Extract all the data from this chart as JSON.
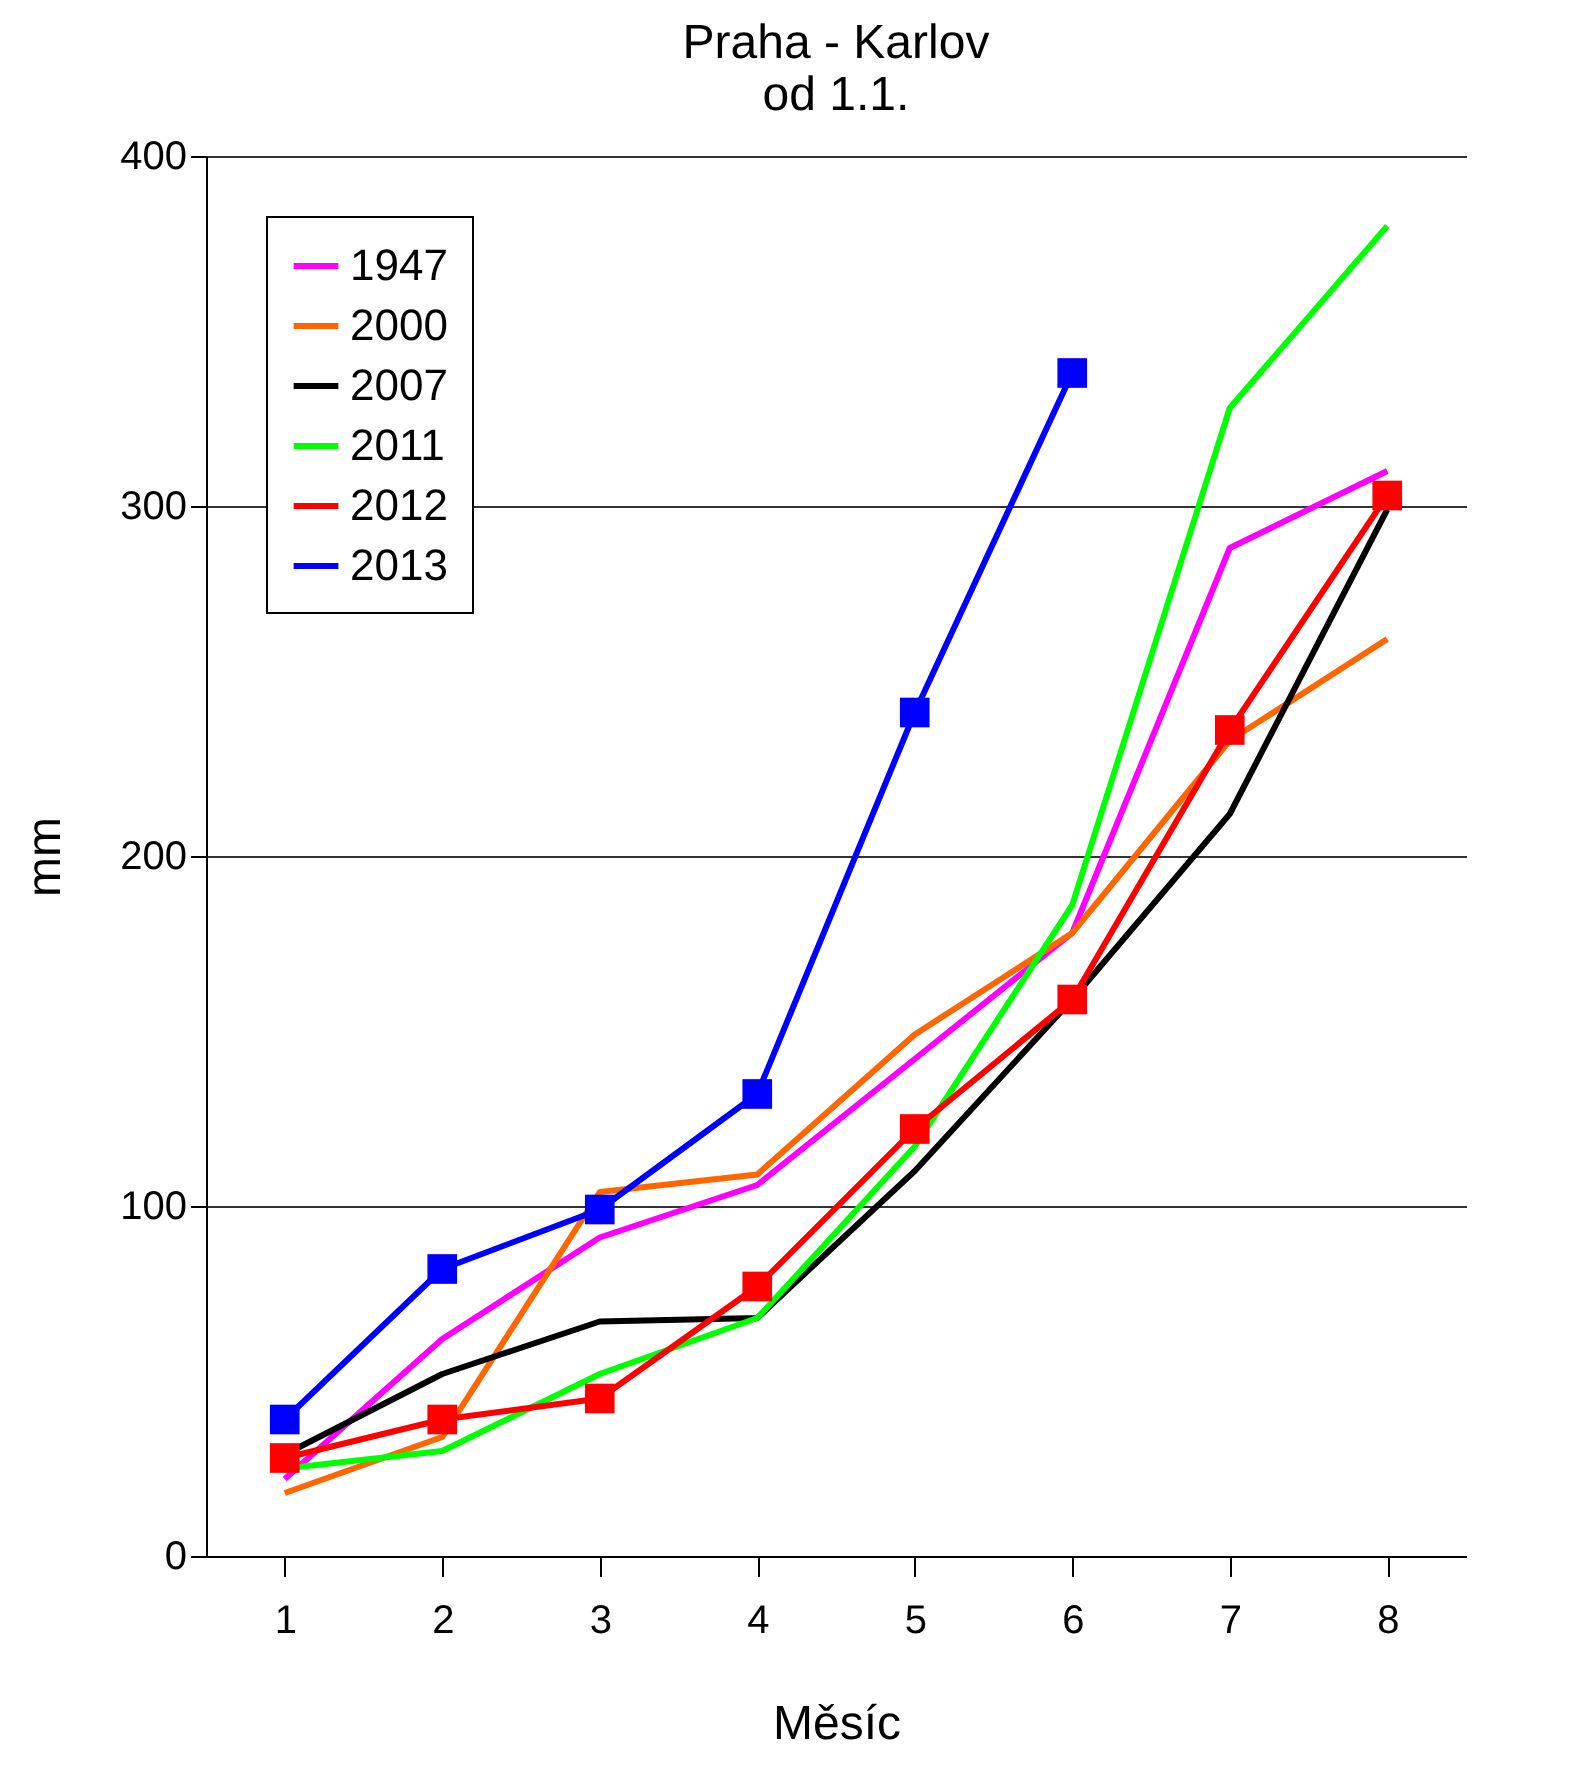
{
  "chart_data": {
    "type": "line",
    "title": [
      "Praha  - Karlov",
      "od 1.1."
    ],
    "xlabel": "Měsíc",
    "ylabel": "mm",
    "categories": [
      "1",
      "2",
      "3",
      "4",
      "5",
      "6",
      "7",
      "8"
    ],
    "series": [
      {
        "name": "1947",
        "color": "#ff00ff",
        "marker": "none",
        "values": [
          22,
          62,
          91,
          106,
          142,
          178,
          288,
          310
        ]
      },
      {
        "name": "2000",
        "color": "#ff6600",
        "marker": "none",
        "values": [
          18,
          34,
          104,
          109,
          149,
          178,
          233,
          262
        ]
      },
      {
        "name": "2007",
        "color": "#000000",
        "marker": "none",
        "values": [
          29,
          52,
          67,
          68,
          110,
          159,
          212,
          299
        ]
      },
      {
        "name": "2011",
        "color": "#00ff00",
        "marker": "none",
        "values": [
          25,
          30,
          52,
          68,
          117,
          186,
          328,
          380
        ]
      },
      {
        "name": "2012",
        "color": "#ff0000",
        "marker": "square",
        "values": [
          28,
          39,
          45,
          77,
          122,
          159,
          236,
          303
        ]
      },
      {
        "name": "2013",
        "color": "#0000ff",
        "marker": "square",
        "values": [
          39,
          82,
          99,
          132,
          241,
          338,
          null,
          null
        ]
      }
    ],
    "ylim": [
      0,
      400
    ],
    "yticks": [
      0,
      100,
      200,
      300,
      400
    ],
    "grid": "y",
    "legend": "top left"
  }
}
